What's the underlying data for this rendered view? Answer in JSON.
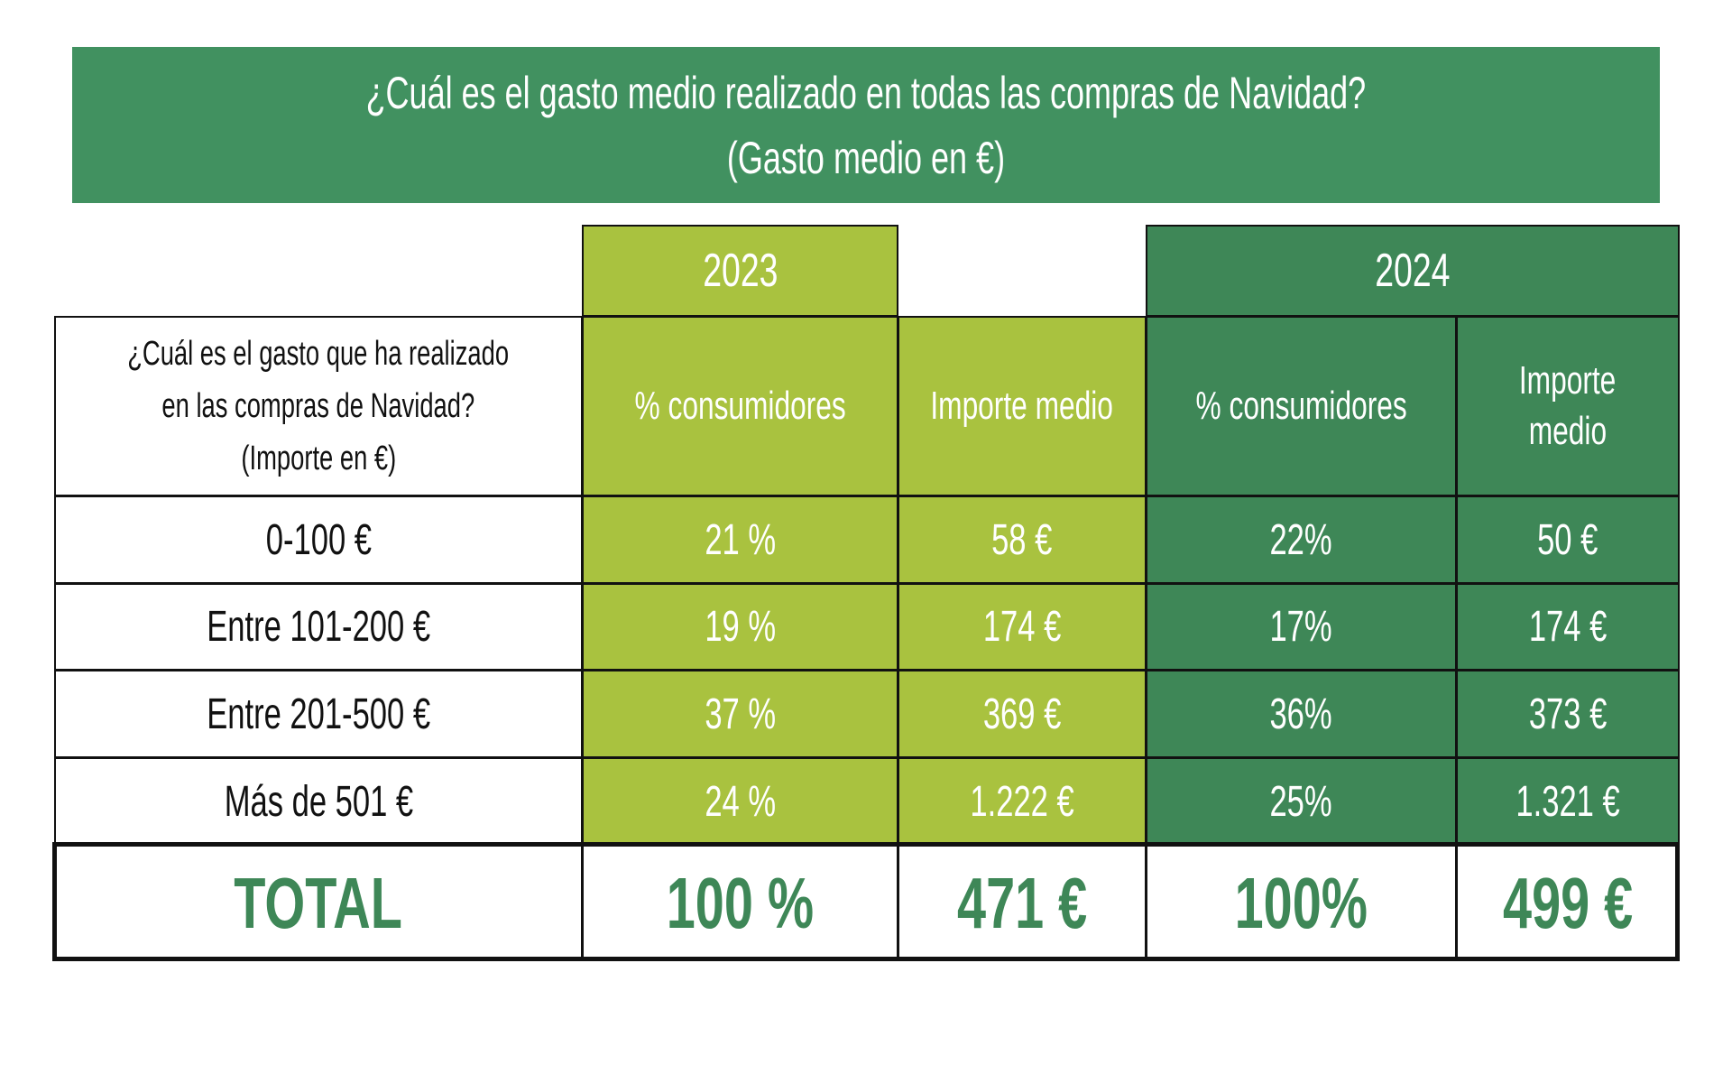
{
  "title": {
    "line1": "¿Cuál es el gasto medio realizado en todas las compras de Navidad?",
    "line2": "(Gasto medio en €)"
  },
  "years": [
    "2023",
    "2024"
  ],
  "header": {
    "question_lines": [
      "¿Cuál es el gasto que ha realizado",
      "en las compras de Navidad?",
      "(Importe en €)"
    ],
    "col_2023_pct": "% consumidores",
    "col_2023_amount": "Importe medio",
    "col_2024_pct": "% consumidores",
    "col_2024_amount_lines": [
      "Importe",
      "medio"
    ]
  },
  "rows": [
    {
      "label": "0-100 €",
      "pct_2023": "21 %",
      "amount_2023": "58 €",
      "pct_2024": "22%",
      "amount_2024": "50 €"
    },
    {
      "label": "Entre 101-200 €",
      "pct_2023": "19 %",
      "amount_2023": "174 €",
      "pct_2024": "17%",
      "amount_2024": "174 €"
    },
    {
      "label": "Entre 201-500 €",
      "pct_2023": "37 %",
      "amount_2023": "369 €",
      "pct_2024": "36%",
      "amount_2024": "373 €"
    },
    {
      "label": "Más de 501 €",
      "pct_2023": "24 %",
      "amount_2023": "1.222 €",
      "pct_2024": "25%",
      "amount_2024": "1.321 €"
    }
  ],
  "total": {
    "label": "TOTAL",
    "pct_2023": "100 %",
    "amount_2023": "471 €",
    "pct_2024": "100%",
    "amount_2024": "499 €"
  },
  "colors": {
    "banner": "#419160",
    "year_2023": "#a9c23f",
    "year_2024": "#3e8757",
    "total_text": "#3e8757"
  }
}
